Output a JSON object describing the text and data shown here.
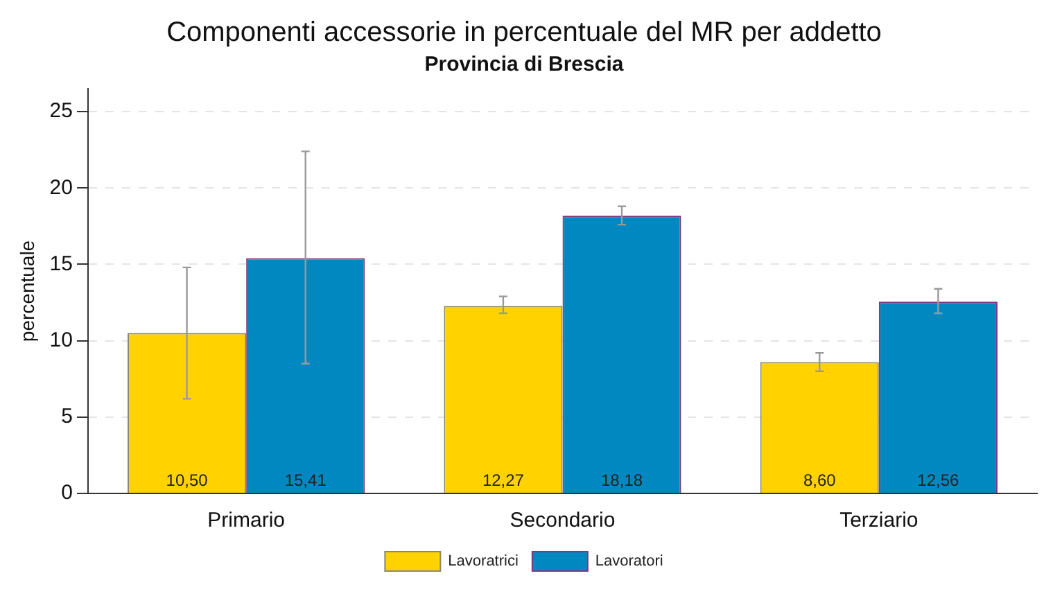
{
  "chart_data": {
    "type": "bar",
    "title": "Componenti accessorie in percentuale del MR per addetto",
    "subtitle": "Provincia di Brescia",
    "ylabel": "percentuale",
    "categories": [
      "Primario",
      "Secondario",
      "Terziario"
    ],
    "series": [
      {
        "name": "Lavoratrici",
        "color": "#ffd200",
        "values": [
          10.5,
          12.27,
          8.6
        ],
        "errors": [
          [
            6.2,
            14.8
          ],
          [
            11.8,
            12.9
          ],
          [
            8.0,
            9.2
          ]
        ],
        "value_labels": [
          "10,50",
          "12,27",
          "8,60"
        ]
      },
      {
        "name": "Lavoratori",
        "color": "#0288c0",
        "values": [
          15.41,
          18.18,
          12.56
        ],
        "errors": [
          [
            8.5,
            22.4
          ],
          [
            17.6,
            18.8
          ],
          [
            11.8,
            13.4
          ]
        ],
        "value_labels": [
          "15,41",
          "18,18",
          "12,56"
        ]
      }
    ],
    "ylim": [
      0,
      26.5
    ],
    "yticks": [
      0,
      5,
      10,
      15,
      20,
      25
    ],
    "grid": "y",
    "legend": "bottom"
  }
}
